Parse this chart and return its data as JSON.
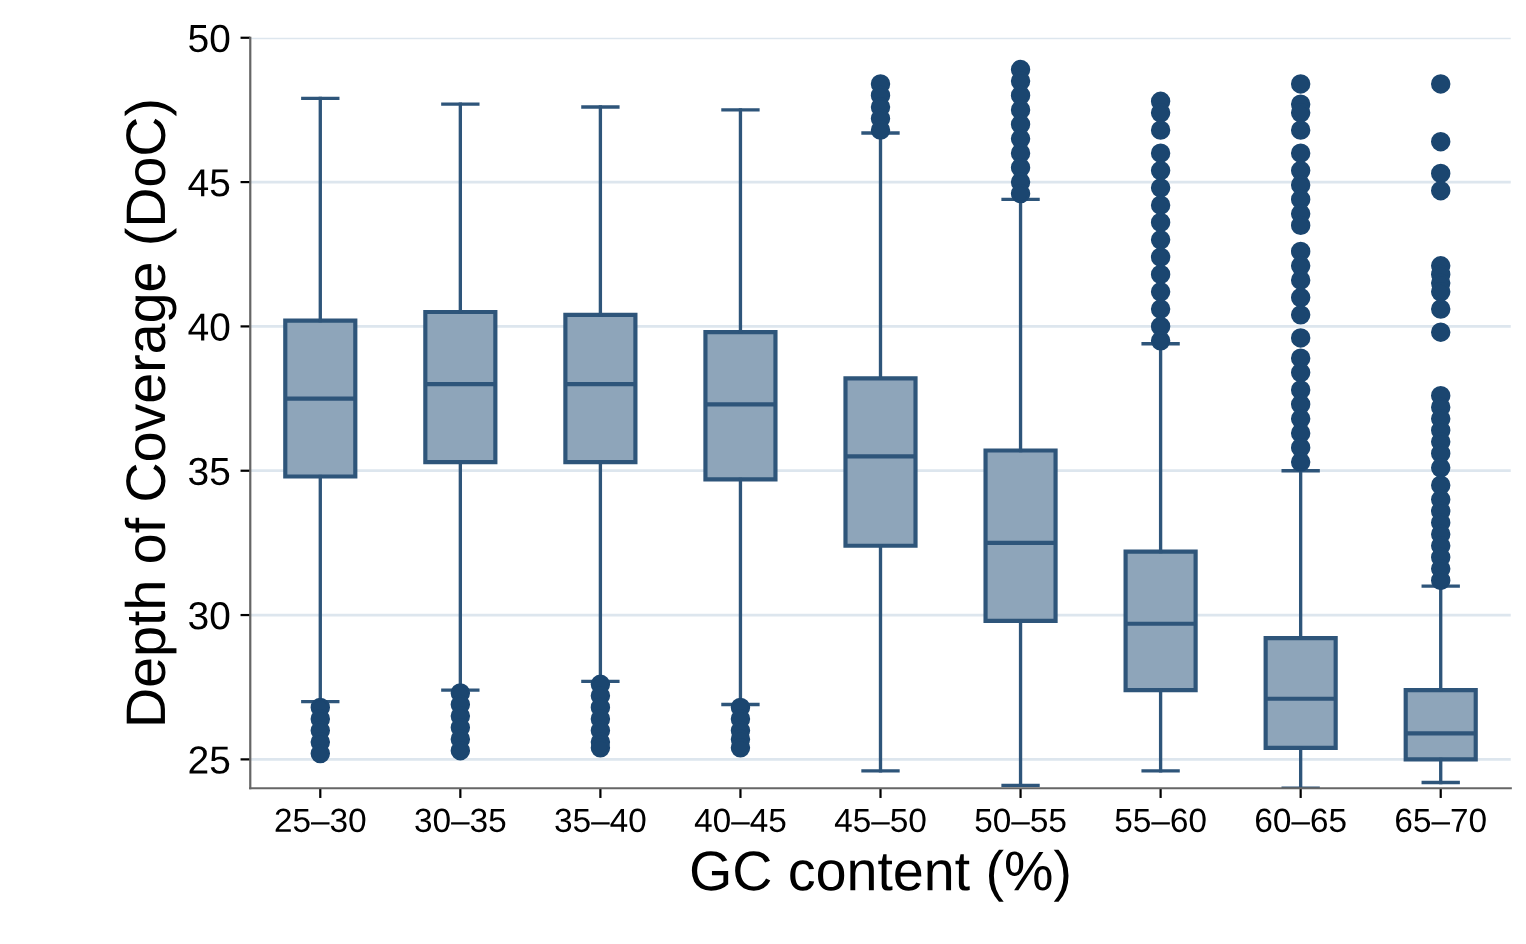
{
  "chart_data": {
    "type": "box",
    "xlabel": "GC content (%)",
    "ylabel": "Depth of Coverage (DoC)",
    "categories": [
      "25–30",
      "30–35",
      "35–40",
      "40–45",
      "45–50",
      "50–55",
      "55–60",
      "60–65",
      "65–70"
    ],
    "color": "#8ea5ba",
    "ylim": [
      24,
      50
    ],
    "yticks": [
      25,
      30,
      35,
      40,
      45,
      50
    ],
    "grid": "y",
    "boxes": [
      {
        "low": 27.0,
        "q1": 34.8,
        "median": 37.5,
        "q3": 40.2,
        "high": 47.9,
        "outliers": [
          26.8,
          26.4,
          26.0,
          25.6,
          25.2
        ]
      },
      {
        "low": 27.4,
        "q1": 35.3,
        "median": 38.0,
        "q3": 40.5,
        "high": 47.7,
        "outliers": [
          27.3,
          26.9,
          26.5,
          26.1,
          25.7,
          25.3
        ]
      },
      {
        "low": 27.7,
        "q1": 35.3,
        "median": 38.0,
        "q3": 40.4,
        "high": 47.6,
        "outliers": [
          27.6,
          27.2,
          26.8,
          26.4,
          26.0,
          25.6,
          25.4
        ]
      },
      {
        "low": 26.9,
        "q1": 34.7,
        "median": 37.3,
        "q3": 39.8,
        "high": 47.5,
        "outliers": [
          26.8,
          26.4,
          26.0,
          25.7,
          25.4
        ]
      },
      {
        "low": 24.6,
        "q1": 32.4,
        "median": 35.5,
        "q3": 38.2,
        "high": 46.7,
        "outliers": [
          48.4,
          48.0,
          47.6,
          47.2,
          46.8
        ]
      },
      {
        "low": 24.1,
        "q1": 29.8,
        "median": 32.5,
        "q3": 35.7,
        "high": 44.4,
        "outliers": [
          48.9,
          48.5,
          48.0,
          47.5,
          47.0,
          46.5,
          46.0,
          45.5,
          45.0,
          44.6
        ]
      },
      {
        "low": 24.6,
        "q1": 27.4,
        "median": 29.7,
        "q3": 32.2,
        "high": 39.4,
        "outliers": [
          47.8,
          47.4,
          46.8,
          46.0,
          45.4,
          44.8,
          44.2,
          43.6,
          43.0,
          42.4,
          41.8,
          41.2,
          40.6,
          40.0,
          39.5
        ]
      },
      {
        "low": 24.0,
        "q1": 25.4,
        "median": 27.1,
        "q3": 29.2,
        "high": 35.0,
        "outliers": [
          48.4,
          47.7,
          47.4,
          46.8,
          46.0,
          45.4,
          44.9,
          44.4,
          43.9,
          43.5,
          42.6,
          42.1,
          41.6,
          41.0,
          40.4,
          39.6,
          38.9,
          38.4,
          37.8,
          37.3,
          36.8,
          36.3,
          35.8,
          35.3
        ]
      },
      {
        "low": 24.2,
        "q1": 25.0,
        "median": 25.9,
        "q3": 27.4,
        "high": 31.0,
        "outliers": [
          48.4,
          46.4,
          45.3,
          44.7,
          42.1,
          41.8,
          41.5,
          41.2,
          40.6,
          39.8,
          37.6,
          37.2,
          36.8,
          36.4,
          36.0,
          35.6,
          35.1,
          34.5,
          34.0,
          33.6,
          33.2,
          32.8,
          32.4,
          32.0,
          31.6,
          31.2
        ]
      }
    ]
  }
}
